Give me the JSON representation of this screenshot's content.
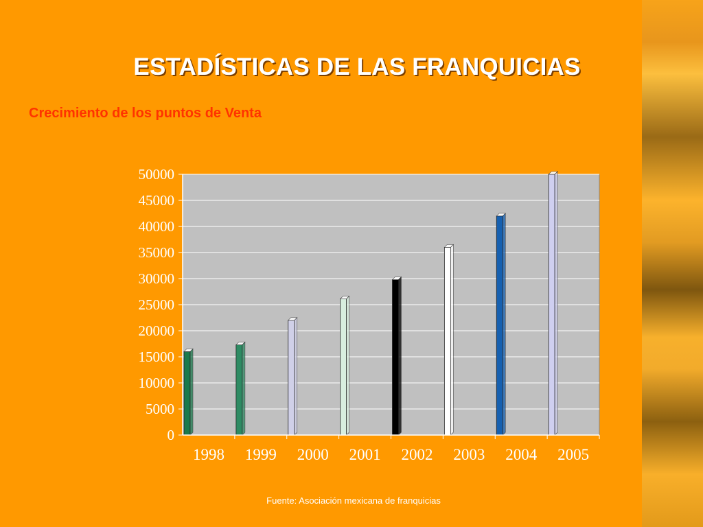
{
  "slide": {
    "title": "ESTADÍSTICAS DE LAS FRANQUICIAS",
    "subtitle": "Crecimiento de los puntos de Venta",
    "source": "Fuente: Asociación mexicana de franquicias"
  },
  "colors": {
    "background": "#ff9900",
    "plot_area": "#c0c0c0",
    "text": "#ffffff",
    "subtitle": "#ff3300"
  },
  "chart_data": {
    "type": "bar",
    "categories": [
      "1998",
      "1999",
      "2000",
      "2001",
      "2002",
      "2003",
      "2004",
      "2005"
    ],
    "values": [
      16000,
      17300,
      22000,
      26100,
      29800,
      36000,
      42000,
      50000
    ],
    "bar_colors": [
      "#1b7a4d",
      "#2e8b63",
      "#d0d0e8",
      "#d8eedf",
      "#000000",
      "#ffffff",
      "#1660b0",
      "#cfcff0"
    ],
    "ylim": [
      0,
      50000
    ],
    "y_ticks": [
      "0",
      "5000",
      "10000",
      "15000",
      "20000",
      "25000",
      "30000",
      "35000",
      "40000",
      "45000",
      "50000"
    ],
    "grid": true,
    "legend": "none",
    "xlabel": "",
    "ylabel": ""
  }
}
